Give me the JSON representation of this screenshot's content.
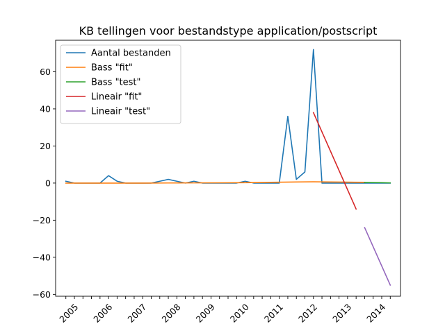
{
  "chart_data": {
    "type": "line",
    "title": "KB tellingen voor bestandstype application/postscript",
    "xlabel": "",
    "ylabel": "",
    "ylim": [
      -61,
      77
    ],
    "xlim": [
      2004.45,
      2014.55
    ],
    "yticks": [
      -60,
      -40,
      -20,
      0,
      20,
      40,
      60
    ],
    "xticks_labeled": [
      2005,
      2006,
      2007,
      2008,
      2009,
      2010,
      2011,
      2012,
      2013,
      2014
    ],
    "xtick_label_rotation": 45,
    "minor_xticks": [
      2004.75,
      2005.0,
      2005.25,
      2005.5,
      2005.75,
      2006.0,
      2006.25,
      2006.5,
      2006.75,
      2007.0,
      2007.25,
      2007.5,
      2007.75,
      2008.0,
      2008.25,
      2008.5,
      2008.75,
      2009.0,
      2009.25,
      2009.5,
      2009.75,
      2010.0,
      2010.25,
      2010.5,
      2010.75,
      2011.0,
      2011.25,
      2011.5,
      2011.75,
      2012.0,
      2012.25,
      2012.5,
      2012.75,
      2013.0,
      2013.25,
      2013.5,
      2013.75,
      2014.0,
      2014.25
    ],
    "legend_position": "top-left",
    "grid": false,
    "series": [
      {
        "name": "Aantal bestanden",
        "color": "#1f77b4",
        "x": [
          2004.75,
          2005.0,
          2005.25,
          2005.5,
          2005.75,
          2006.0,
          2006.25,
          2006.5,
          2006.75,
          2007.0,
          2007.25,
          2007.5,
          2007.75,
          2008.0,
          2008.25,
          2008.5,
          2008.75,
          2009.0,
          2009.25,
          2009.5,
          2009.75,
          2010.0,
          2010.25,
          2010.5,
          2010.75,
          2011.0,
          2011.25,
          2011.5,
          2011.75,
          2012.0,
          2012.25,
          2012.5,
          2012.75,
          2013.0,
          2013.25,
          2013.5,
          2013.75,
          2014.0,
          2014.25
        ],
        "y": [
          1,
          0,
          0,
          0,
          0,
          4,
          1,
          0,
          0,
          0,
          0,
          1,
          2,
          1,
          0,
          1,
          0,
          0,
          0,
          0,
          0,
          1,
          0,
          0,
          0,
          0,
          36,
          2,
          6,
          72,
          0,
          0,
          0,
          0,
          0,
          0,
          0,
          0,
          0
        ]
      },
      {
        "name": "Bass \"fit\"",
        "color": "#ff7f0e",
        "x": [
          2004.75,
          2005.5,
          2006.25,
          2007.0,
          2007.75,
          2008.5,
          2009.25,
          2010.0,
          2010.75,
          2011.5,
          2012.0,
          2012.5,
          2013.0,
          2013.5
        ],
        "y": [
          0.0,
          0.0,
          0.0,
          0.0,
          0.05,
          0.1,
          0.15,
          0.2,
          0.4,
          0.6,
          0.7,
          0.6,
          0.5,
          0.4
        ]
      },
      {
        "name": "Bass \"test\"",
        "color": "#2ca02c",
        "x": [
          2013.5,
          2014.0,
          2014.25
        ],
        "y": [
          0.3,
          0.2,
          0.1
        ]
      },
      {
        "name": "Lineair \"fit\"",
        "color": "#d62728",
        "x": [
          2012.0,
          2013.25
        ],
        "y": [
          38,
          -14
        ]
      },
      {
        "name": "Lineair \"test\"",
        "color": "#9467bd",
        "x": [
          2013.5,
          2014.25
        ],
        "y": [
          -24,
          -55
        ]
      }
    ]
  }
}
